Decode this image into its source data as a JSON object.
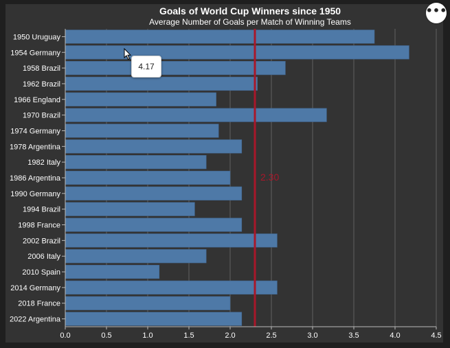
{
  "header": {
    "title": "Goals of World Cup Winners since 1950",
    "subtitle": "Average Number of Goals per Match of Winning Teams"
  },
  "menu": {
    "icon": "more-options-icon",
    "glyph": "•••"
  },
  "tooltip": {
    "text": "4.17"
  },
  "colors": {
    "bar": "#4e79a7",
    "reference_line": "#a8172a",
    "background": "#333333",
    "grid": "#5a5a5a",
    "text": "#ffffff"
  },
  "chart_data": {
    "type": "bar",
    "orientation": "horizontal",
    "title": "Goals of World Cup Winners since 1950",
    "subtitle": "Average Number of Goals per Match of Winning Teams",
    "categories": [
      "1950 Uruguay",
      "1954 Germany",
      "1958 Brazil",
      "1962 Brazil",
      "1966 England",
      "1970 Brazil",
      "1974 Germany",
      "1978 Argentina",
      "1982 Italy",
      "1986 Argentina",
      "1990 Germany",
      "1994 Brazil",
      "1998 France",
      "2002 Brazil",
      "2006 Italy",
      "2010 Spain",
      "2014 Germany",
      "2018 France",
      "2022 Argentina"
    ],
    "values": [
      3.75,
      4.17,
      2.67,
      2.33,
      1.83,
      3.17,
      1.86,
      2.14,
      1.71,
      2.0,
      2.14,
      1.57,
      2.14,
      2.57,
      1.71,
      1.14,
      2.57,
      2.0,
      2.14
    ],
    "xlim": [
      0,
      4.5
    ],
    "x_ticks": [
      "0.0",
      "0.5",
      "1.0",
      "1.5",
      "2.0",
      "2.5",
      "3.0",
      "3.5",
      "4.0",
      "4.5"
    ],
    "reference_line": {
      "value": 2.3,
      "label": "2.30"
    },
    "grid": true,
    "legend": "none"
  }
}
